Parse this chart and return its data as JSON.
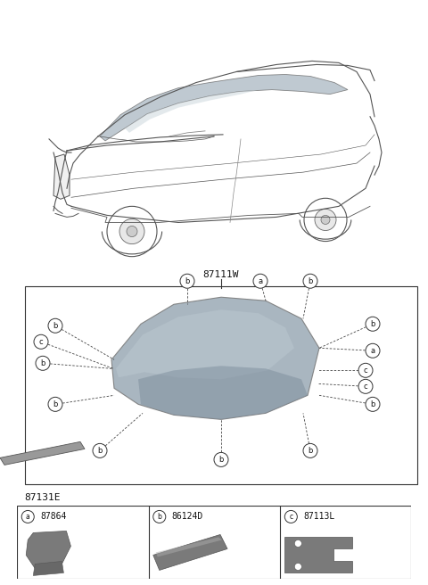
{
  "bg_color": "#ffffff",
  "title": "87111W",
  "part2_label": "87131E",
  "legend": [
    {
      "key": "a",
      "code": "87864"
    },
    {
      "key": "b",
      "code": "86124D"
    },
    {
      "key": "c",
      "code": "87113L"
    }
  ]
}
